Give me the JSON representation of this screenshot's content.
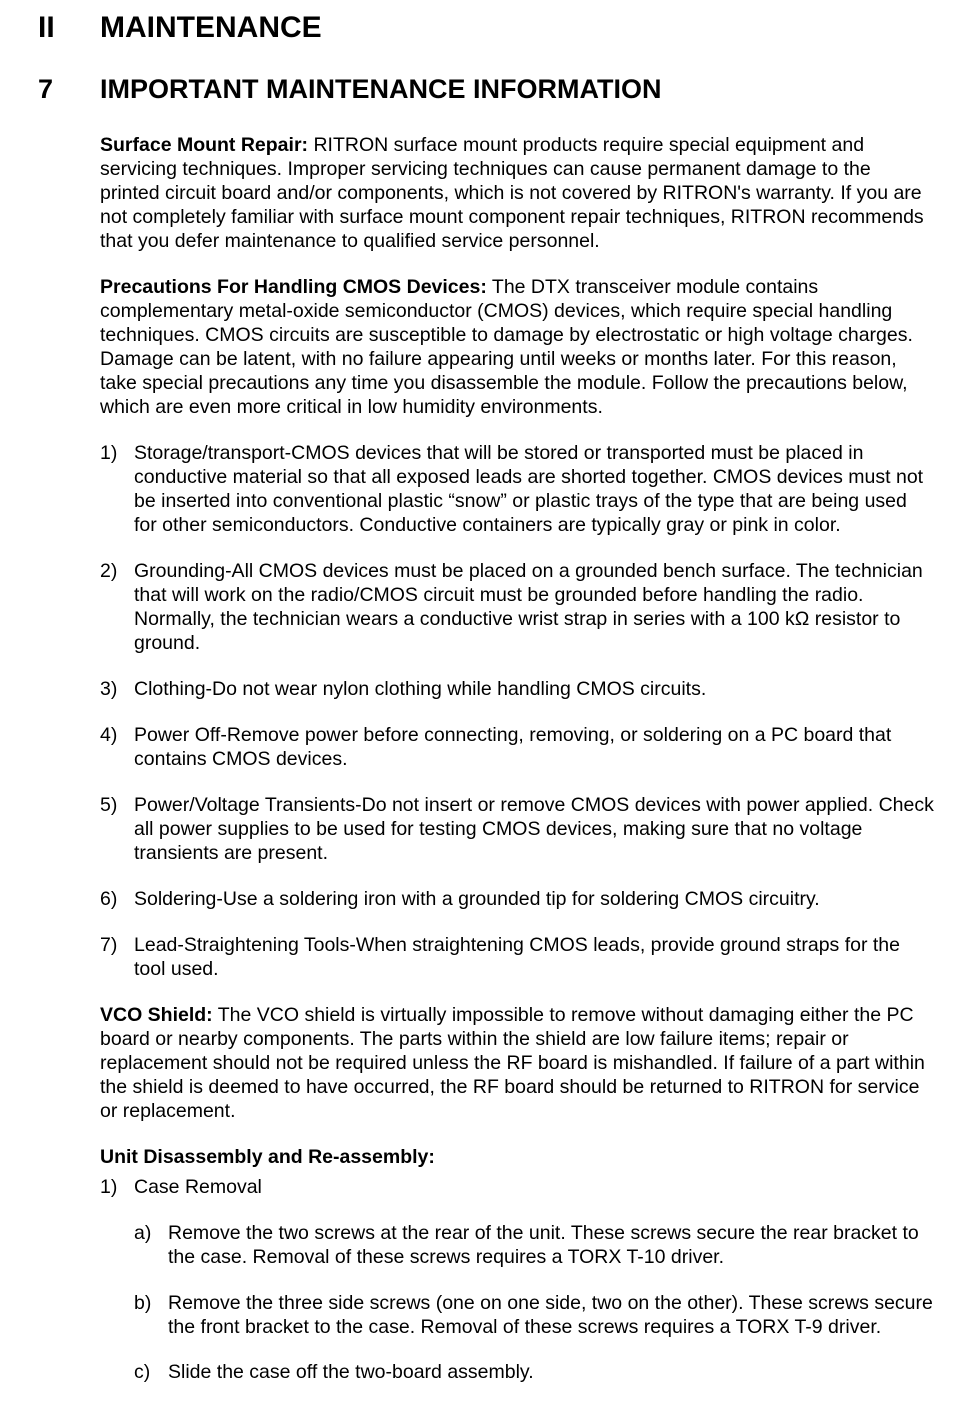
{
  "colors": {
    "text": "#000000",
    "background": "#ffffff"
  },
  "typography": {
    "family": "Arial",
    "body_size_pt": 15,
    "h1_size_pt": 23,
    "h2_size_pt": 21,
    "h1_weight": "bold",
    "h2_weight": "bold",
    "line_height": 1.23
  },
  "h1": {
    "num": "II",
    "title": "MAINTENANCE"
  },
  "h2": {
    "num": "7",
    "title": "IMPORTANT MAINTENANCE INFORMATION"
  },
  "surface_mount": {
    "head": "Surface Mount Repair:",
    "body": " RITRON surface mount products require special equipment and servicing techniques.  Improper servicing techniques can cause permanent damage to the printed circuit board and/or components, which is not covered by RITRON's warranty.  If you are not completely familiar with surface mount component repair techniques, RITRON recommends that you defer maintenance to qualified service personnel."
  },
  "cmos": {
    "head": "Precautions For Handling CMOS Devices:",
    "body": " The DTX transceiver module contains complementary metal-oxide semiconductor (CMOS) devices, which require special handling techniques.  CMOS circuits are susceptible to damage by electrostatic or high voltage charges.  Damage can be latent, with no failure appearing until weeks or months later.  For this reason, take special precautions any time you disassemble the module.  Follow the precautions below, which are even more critical in low humidity environments."
  },
  "precautions": [
    {
      "n": "1)",
      "t": "Storage/transport-CMOS devices that will be stored or transported must be placed in conductive material so that all exposed leads are shorted together.  CMOS devices must not be inserted into conventional plastic “snow” or plastic trays of the type that are being used for other semiconductors.  Conductive containers are typically gray or pink in color."
    },
    {
      "n": "2)",
      "t": "Grounding-All CMOS devices must be placed on a grounded bench surface.  The technician that will work on the radio/CMOS circuit must be grounded before handling the radio.  Normally, the technician wears a conductive wrist strap in series with a 100 kΩ resistor to ground."
    },
    {
      "n": "3)",
      "t": "Clothing-Do not wear nylon clothing while handling CMOS circuits."
    },
    {
      "n": "4)",
      "t": "Power Off-Remove power before connecting, removing, or soldering on a PC board that contains CMOS devices."
    },
    {
      "n": "5)",
      "t": "Power/Voltage Transients-Do not insert or remove CMOS devices with power applied.  Check all power supplies to be used for testing CMOS devices, making sure that no voltage transients are present."
    },
    {
      "n": "6)",
      "t": "Soldering-Use a soldering iron with a grounded tip for soldering CMOS circuitry."
    },
    {
      "n": "7)",
      "t": "Lead-Straightening Tools-When straightening CMOS leads, provide ground straps for the tool used."
    }
  ],
  "vco": {
    "head": "VCO Shield:",
    "body": " The VCO shield is virtually impossible to remove without damaging either the PC board or nearby components.  The parts within the shield are low failure items; repair or replacement should not be required unless the RF board is mishandled.  If failure of a part within the shield is deemed to have occurred, the RF board should be returned to RITRON for service or replacement."
  },
  "disassembly": {
    "head": "Unit Disassembly and Re-assembly:",
    "step1": {
      "n": "1)",
      "t": "Case Removal"
    },
    "subs": [
      {
        "n": "a)",
        "t": "Remove the two screws at the rear of the unit.  These screws secure the rear bracket to the case.  Removal of these screws requires a TORX T-10 driver."
      },
      {
        "n": "b)",
        "t": "Remove the three side screws (one on one side, two on the other).  These screws secure the front bracket to the case.   Removal of these screws requires a TORX T-9 driver."
      },
      {
        "n": "c)",
        "t": "Slide the case off the two-board assembly."
      }
    ]
  }
}
